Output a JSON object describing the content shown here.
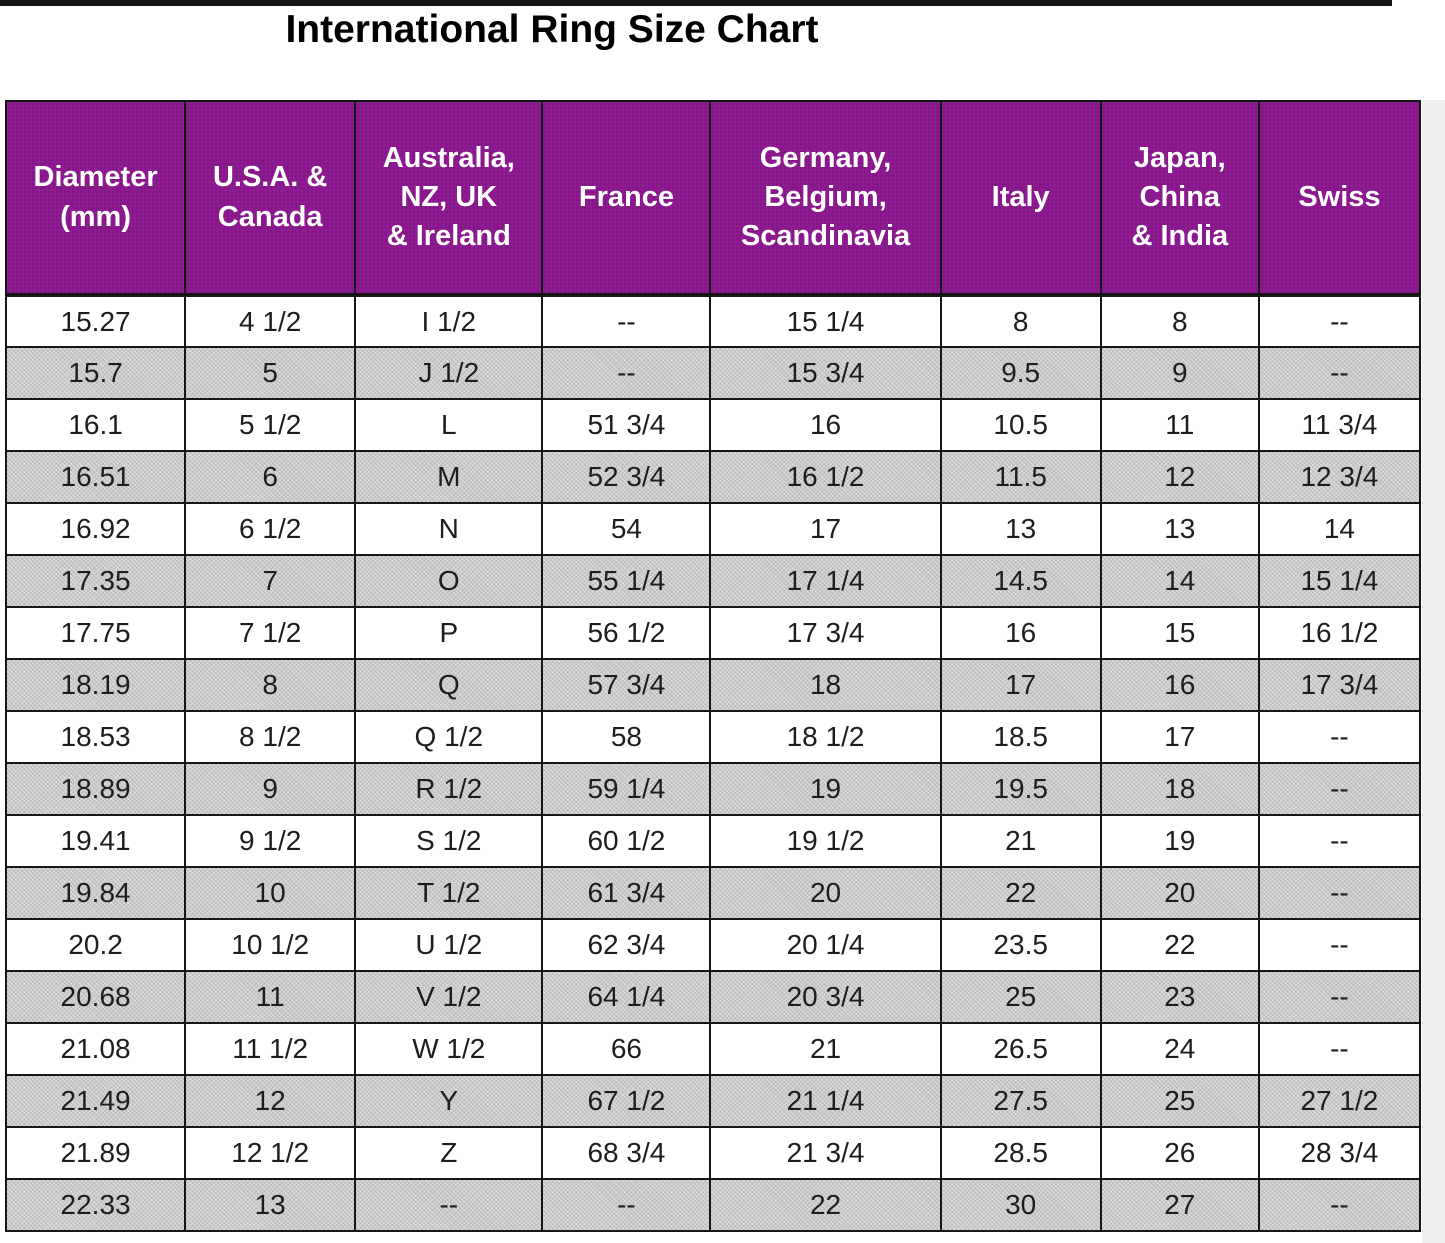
{
  "title": "International Ring Size Chart",
  "colors": {
    "header_purple": "#8E1A91",
    "row_gray": "#cbcaca",
    "row_white": "#ffffff",
    "border_black": "#161616",
    "header_text": "#ffffff",
    "body_text": "#1d1d1d"
  },
  "chart_data": {
    "type": "table",
    "title": "International Ring Size Chart",
    "columns": [
      {
        "key": "diameter-mm",
        "lines": [
          "Diameter",
          "(mm)"
        ]
      },
      {
        "key": "usa-canada",
        "lines": [
          "U.S.A. &",
          "Canada"
        ]
      },
      {
        "key": "australia-nz-uk-ireland",
        "lines": [
          "Australia,",
          "NZ, UK",
          "& Ireland"
        ]
      },
      {
        "key": "france",
        "lines": [
          "France"
        ]
      },
      {
        "key": "germany-belgium-scandinavia",
        "lines": [
          "Germany,",
          "Belgium,",
          "Scandinavia"
        ]
      },
      {
        "key": "italy",
        "lines": [
          "Italy"
        ]
      },
      {
        "key": "japan-china-india",
        "lines": [
          "Japan,",
          "China",
          "& India"
        ]
      },
      {
        "key": "swiss",
        "lines": [
          "Swiss"
        ]
      }
    ],
    "rows": [
      [
        "15.27",
        "4 1/2",
        "I 1/2",
        "--",
        "15 1/4",
        "8",
        "8",
        "--"
      ],
      [
        "15.7",
        "5",
        "J 1/2",
        "--",
        "15 3/4",
        "9.5",
        "9",
        "--"
      ],
      [
        "16.1",
        "5 1/2",
        "L",
        "51 3/4",
        "16",
        "10.5",
        "11",
        "11 3/4"
      ],
      [
        "16.51",
        "6",
        "M",
        "52 3/4",
        "16 1/2",
        "11.5",
        "12",
        "12 3/4"
      ],
      [
        "16.92",
        "6 1/2",
        "N",
        "54",
        "17",
        "13",
        "13",
        "14"
      ],
      [
        "17.35",
        "7",
        "O",
        "55 1/4",
        "17 1/4",
        "14.5",
        "14",
        "15 1/4"
      ],
      [
        "17.75",
        "7 1/2",
        "P",
        "56 1/2",
        "17 3/4",
        "16",
        "15",
        "16 1/2"
      ],
      [
        "18.19",
        "8",
        "Q",
        "57 3/4",
        "18",
        "17",
        "16",
        "17 3/4"
      ],
      [
        "18.53",
        "8 1/2",
        "Q 1/2",
        "58",
        "18 1/2",
        "18.5",
        "17",
        "--"
      ],
      [
        "18.89",
        "9",
        "R 1/2",
        "59 1/4",
        "19",
        "19.5",
        "18",
        "--"
      ],
      [
        "19.41",
        "9 1/2",
        "S 1/2",
        "60 1/2",
        "19 1/2",
        "21",
        "19",
        "--"
      ],
      [
        "19.84",
        "10",
        "T 1/2",
        "61 3/4",
        "20",
        "22",
        "20",
        "--"
      ],
      [
        "20.2",
        "10 1/2",
        "U 1/2",
        "62 3/4",
        "20 1/4",
        "23.5",
        "22",
        "--"
      ],
      [
        "20.68",
        "11",
        "V 1/2",
        "64 1/4",
        "20 3/4",
        "25",
        "23",
        "--"
      ],
      [
        "21.08",
        "11 1/2",
        "W 1/2",
        "66",
        "21",
        "26.5",
        "24",
        "--"
      ],
      [
        "21.49",
        "12",
        "Y",
        "67 1/2",
        "21 1/4",
        "27.5",
        "25",
        "27 1/2"
      ],
      [
        "21.89",
        "12 1/2",
        "Z",
        "68 3/4",
        "21 3/4",
        "28.5",
        "26",
        "28 3/4"
      ],
      [
        "22.33",
        "13",
        "--",
        "--",
        "22",
        "30",
        "27",
        "--"
      ]
    ]
  }
}
